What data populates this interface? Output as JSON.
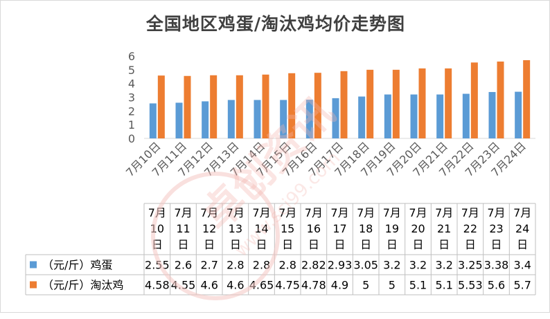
{
  "window": {
    "title": "全国地区鸡蛋/淘汰鸡均价走势图"
  },
  "chart_data": {
    "type": "bar",
    "title": "全国地区鸡蛋/淘汰鸡均价走势图",
    "categories": [
      "7月10日",
      "7月11日",
      "7月12日",
      "7月13日",
      "7月14日",
      "7月15日",
      "7月16日",
      "7月17日",
      "7月18日",
      "7月19日",
      "7月20日",
      "7月21日",
      "7月22日",
      "7月23日",
      "7月24日"
    ],
    "series": [
      {
        "name": "（元/斤）鸡蛋",
        "color": "#5b9bd5",
        "values": [
          2.55,
          2.6,
          2.7,
          2.8,
          2.8,
          2.8,
          2.82,
          2.93,
          3.05,
          3.2,
          3.2,
          3.2,
          3.25,
          3.38,
          3.4
        ],
        "labels": [
          "2.55",
          "2.6",
          "2.7",
          "2.8",
          "2.8",
          "2.8",
          "2.82",
          "2.93",
          "3.05",
          "3.2",
          "3.2",
          "3.2",
          "3.25",
          "3.38",
          "3.4"
        ]
      },
      {
        "name": "（元/斤）淘汰鸡",
        "color": "#ed7d31",
        "values": [
          4.58,
          4.55,
          4.6,
          4.6,
          4.65,
          4.75,
          4.78,
          4.9,
          5,
          5,
          5.1,
          5.1,
          5.53,
          5.6,
          5.7
        ],
        "labels": [
          "4.58",
          "4.55",
          "4.6",
          "4.6",
          "4.65",
          "4.75",
          "4.78",
          "4.9",
          "5",
          "5",
          "5.1",
          "5.1",
          "5.53",
          "5.6",
          "5.7"
        ]
      }
    ],
    "yticks": [
      "0",
      "1",
      "2",
      "3",
      "4",
      "5",
      "6"
    ],
    "ylim": [
      0,
      6
    ],
    "grid": false,
    "legend": "data-table",
    "data_table": true
  },
  "watermark": {
    "text": "卓创资讯",
    "url": "www.sci99.com"
  },
  "colors": {
    "gridline": "#d9d9d9",
    "axis_text": "#595959",
    "title": "#404040"
  }
}
